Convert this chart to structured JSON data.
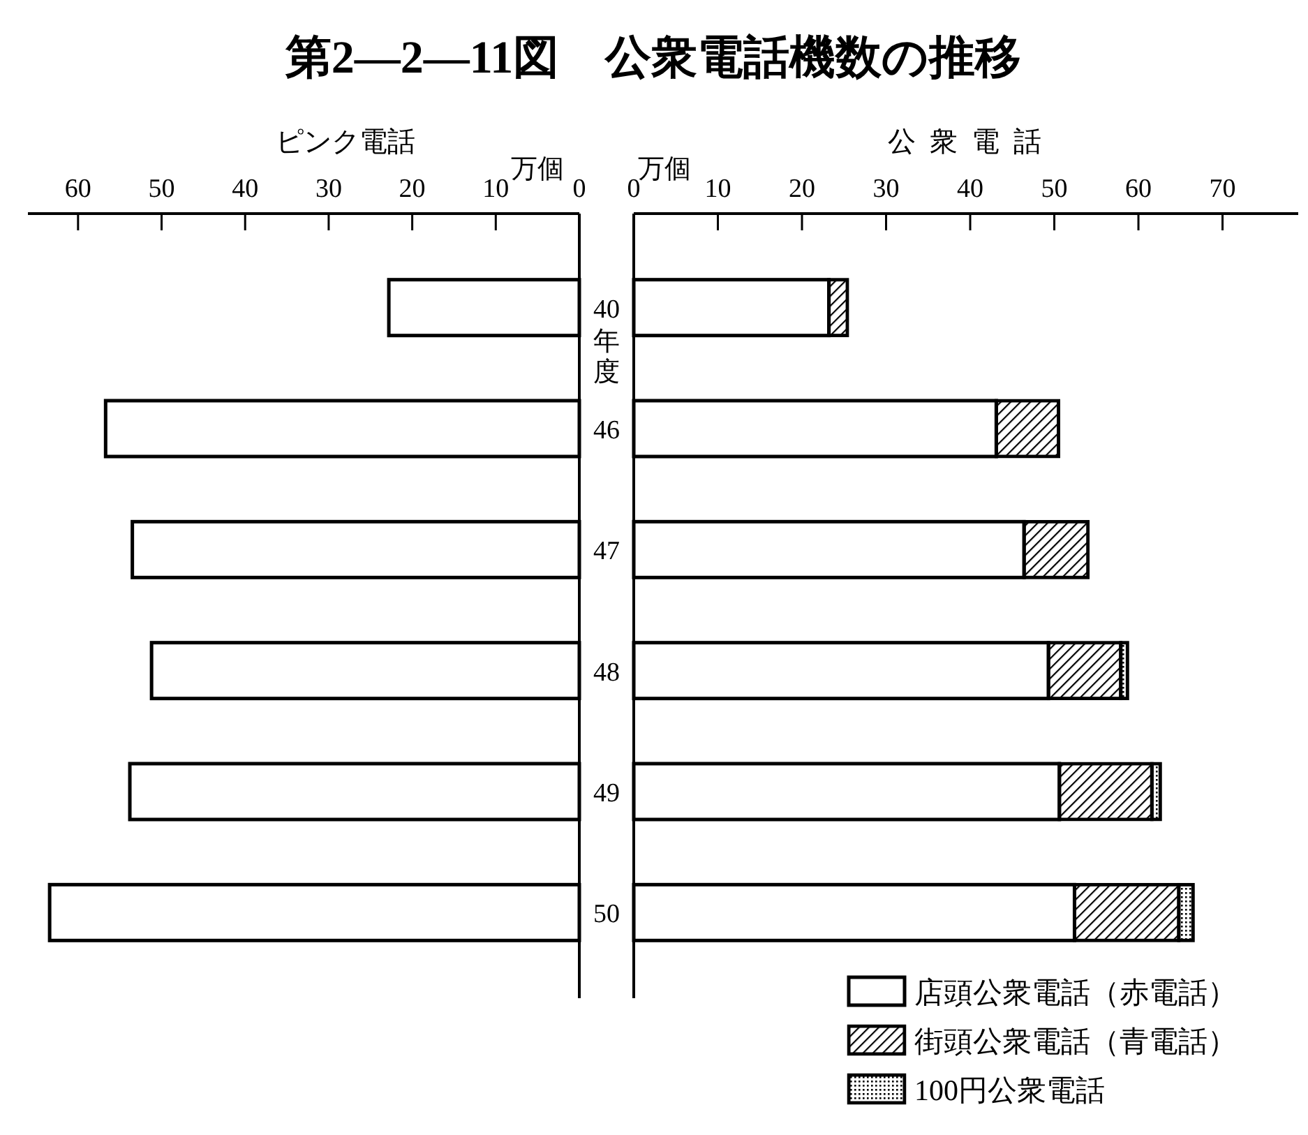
{
  "chart_data": [
    {
      "type": "bar",
      "title": "第2—2—11図　公衆電話機数の推移",
      "subtitle": "ピンク電話",
      "xlabel": "万個",
      "ylabel": "年度",
      "orientation": "horizontal",
      "categories": [
        "40",
        "46",
        "47",
        "48",
        "49",
        "50"
      ],
      "values": [
        22.8,
        56.7,
        53.5,
        51.2,
        53.8,
        63.4
      ],
      "color": "#ffffff",
      "xlim": [
        66,
        0
      ],
      "xticks": [
        60,
        50,
        40,
        30,
        20,
        10,
        0
      ]
    },
    {
      "type": "bar",
      "subtitle": "公衆電話",
      "xlabel": "万個",
      "orientation": "horizontal",
      "stacked": true,
      "categories": [
        "40",
        "46",
        "47",
        "48",
        "49",
        "50"
      ],
      "series": [
        {
          "name": "店頭公衆電話（赤電話）",
          "color": "#ffffff",
          "values": [
            23.2,
            43.1,
            46.4,
            49.3,
            50.6,
            52.4
          ]
        },
        {
          "name": "街頭公衆電話（青電話）",
          "color": "#000000",
          "values": [
            2.2,
            7.4,
            7.6,
            8.6,
            11.0,
            12.4
          ]
        },
        {
          "name": "100円公衆電話",
          "color": "#000000",
          "values": [
            null,
            null,
            null,
            0.8,
            1.0,
            1.7
          ]
        }
      ],
      "xlim": [
        0,
        79
      ],
      "xticks": [
        0,
        10,
        20,
        30,
        40,
        50,
        60,
        70
      ],
      "legend": "bottom right",
      "tick_labels": "x"
    }
  ]
}
